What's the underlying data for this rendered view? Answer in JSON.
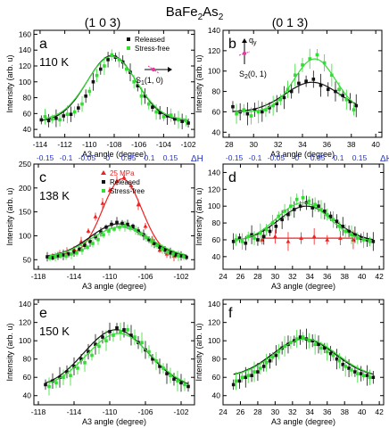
{
  "figure": {
    "formula": [
      "BaFe",
      "2",
      "As",
      "2"
    ],
    "col_headers": [
      "(1 0 3)",
      "(0 1 3)"
    ],
    "colors": {
      "released": "#111111",
      "stress_free": "#33dd33",
      "mpa25": "#ee2222",
      "delta_h": "#2233cc"
    }
  },
  "chart_data": [
    {
      "type": "scatter",
      "panel": "a",
      "temperature": "110 K",
      "xlabel": "A3 angle (degree)",
      "ylabel": "Intensity (arb. u)",
      "xlim": [
        -114.5,
        -101.5
      ],
      "ylim": [
        30,
        165
      ],
      "xticks": [
        -114,
        -112,
        -110,
        -108,
        -106,
        -104,
        -102
      ],
      "yticks": [
        40,
        60,
        80,
        100,
        120,
        140,
        160
      ],
      "legend": [
        "Released",
        "Stress-free"
      ],
      "inset": {
        "label": "S",
        "sub": "1",
        "coord": "(1, 0)"
      },
      "series": [
        {
          "name": "Released",
          "x": [
            -113.9,
            -113.3,
            -112.7,
            -112.1,
            -111.5,
            -110.9,
            -110.3,
            -109.7,
            -109.1,
            -108.5,
            -107.9,
            -107.3,
            -106.7,
            -106.1,
            -105.5,
            -104.9,
            -104.3,
            -103.7,
            -103.1,
            -102.5,
            -102.0
          ],
          "y": [
            52,
            51,
            54,
            57,
            59,
            67,
            82,
            100,
            116,
            128,
            131,
            125,
            112,
            95,
            82,
            68,
            61,
            57,
            53,
            50,
            48
          ],
          "fit": {
            "a": 83,
            "c": -108.2,
            "w": 2.0,
            "b": 50
          }
        },
        {
          "name": "Stress-free",
          "x": [
            -113.6,
            -113.0,
            -112.4,
            -111.8,
            -111.2,
            -110.6,
            -110.0,
            -109.4,
            -108.8,
            -108.2,
            -107.6,
            -107.0,
            -106.4,
            -105.8,
            -105.2,
            -104.6,
            -104.0,
            -103.4,
            -102.8,
            -102.2
          ],
          "y": [
            56,
            53,
            52,
            59,
            62,
            72,
            88,
            108,
            120,
            134,
            128,
            116,
            100,
            82,
            72,
            62,
            56,
            58,
            52,
            51
          ],
          "fit": {
            "a": 80,
            "c": -108.2,
            "w": 2.0,
            "b": 52
          }
        }
      ]
    },
    {
      "type": "scatter",
      "panel": "b",
      "xlabel": "A3 angle (degree)",
      "ylabel": "Intensity (arb. u)",
      "xlim": [
        27.5,
        40.5
      ],
      "ylim": [
        35,
        140
      ],
      "xticks": [
        28,
        30,
        32,
        34,
        36,
        38,
        40
      ],
      "yticks": [
        40,
        60,
        80,
        100,
        120,
        140
      ],
      "inset": {
        "label": "S",
        "sub": "2",
        "coord": "(0, 1)",
        "q": "q",
        "q_sub": "y"
      },
      "series": [
        {
          "name": "Released",
          "x": [
            28.3,
            28.9,
            29.5,
            30.1,
            30.7,
            31.3,
            31.9,
            32.5,
            33.1,
            33.7,
            34.3,
            34.9,
            35.5,
            36.1,
            36.7,
            37.3,
            37.9,
            38.4
          ],
          "y": [
            65,
            60,
            58,
            62,
            60,
            64,
            68,
            74,
            80,
            88,
            90,
            92,
            86,
            82,
            80,
            76,
            70,
            66
          ],
          "fit": {
            "a": 29,
            "c": 34.8,
            "w": 2.2,
            "b": 60
          }
        },
        {
          "name": "Stress-free",
          "x": [
            28.6,
            29.2,
            29.8,
            30.4,
            31.0,
            31.6,
            32.2,
            32.8,
            33.4,
            34.0,
            34.6,
            35.2,
            35.8,
            36.4,
            37.0,
            37.6,
            38.2
          ],
          "y": [
            58,
            62,
            56,
            60,
            62,
            66,
            72,
            82,
            96,
            106,
            112,
            116,
            108,
            96,
            82,
            72,
            62
          ],
          "fit": {
            "a": 52,
            "c": 35.0,
            "w": 1.7,
            "b": 60
          }
        }
      ]
    },
    {
      "type": "scatter",
      "panel": "c",
      "temperature": "138 K",
      "xlabel": "A3 angle (degree)",
      "ylabel": "Intensity (arb. u)",
      "top_axis_label": "ΔH",
      "top_ticks": [
        "-0.15",
        "-0.1",
        "-0.05",
        "0",
        "0.05",
        "0.1",
        "0.15"
      ],
      "xlim": [
        -118.5,
        -100.5
      ],
      "ylim": [
        30,
        250
      ],
      "xticks": [
        -118,
        -114,
        -110,
        -106,
        -102
      ],
      "yticks": [
        50,
        100,
        150,
        200,
        250
      ],
      "legend": [
        "25 MPa",
        "Released",
        "Stress-free"
      ],
      "series": [
        {
          "name": "25 MPa",
          "x": [
            -116.4,
            -115.6,
            -114.8,
            -114.0,
            -113.2,
            -112.4,
            -111.6,
            -110.8,
            -110.0,
            -109.2,
            -108.4,
            -107.6,
            -106.8,
            -106.0,
            -105.2,
            -104.4,
            -103.6,
            -102.8
          ],
          "y": [
            58,
            62,
            65,
            72,
            88,
            110,
            140,
            168,
            195,
            215,
            222,
            205,
            165,
            120,
            90,
            70,
            62,
            58
          ],
          "fit": {
            "a": 162,
            "c": -108.6,
            "w": 2.2,
            "b": 57
          }
        },
        {
          "name": "Released",
          "x": [
            -117.0,
            -116.4,
            -115.8,
            -115.2,
            -114.6,
            -114.0,
            -113.4,
            -112.8,
            -112.2,
            -111.6,
            -111.0,
            -110.4,
            -109.8,
            -109.2,
            -108.6,
            -108.0,
            -107.4,
            -106.8,
            -106.2,
            -105.6,
            -105.0,
            -104.4,
            -103.8,
            -103.2,
            -102.6,
            -102.0,
            -101.4
          ],
          "y": [
            56,
            54,
            58,
            60,
            62,
            66,
            72,
            80,
            88,
            98,
            108,
            118,
            124,
            128,
            126,
            124,
            120,
            110,
            102,
            92,
            84,
            76,
            70,
            64,
            60,
            58,
            55
          ],
          "fit": {
            "a": 70,
            "c": -109.0,
            "w": 3.2,
            "b": 55
          }
        },
        {
          "name": "Stress-free",
          "x": [
            -116.7,
            -116.1,
            -115.5,
            -114.9,
            -114.3,
            -113.7,
            -113.1,
            -112.5,
            -111.9,
            -111.3,
            -110.7,
            -110.1,
            -109.5,
            -108.9,
            -108.3,
            -107.7,
            -107.1,
            -106.5,
            -105.9,
            -105.3,
            -104.7,
            -104.1,
            -103.5,
            -102.9,
            -102.3,
            -101.7
          ],
          "y": [
            54,
            56,
            58,
            58,
            62,
            64,
            70,
            76,
            84,
            92,
            102,
            110,
            114,
            118,
            120,
            116,
            112,
            104,
            96,
            88,
            80,
            72,
            66,
            62,
            58,
            56
          ],
          "fit": {
            "a": 64,
            "c": -108.8,
            "w": 3.4,
            "b": 54
          }
        }
      ]
    },
    {
      "type": "scatter",
      "panel": "d",
      "xlabel": "A3 angle (degree)",
      "ylabel": "Intensity (arb. u)",
      "top_axis_label": "ΔH",
      "top_ticks": [
        "-0.15",
        "-0.1",
        "-0.05",
        "0",
        "0.05",
        "0.1",
        "0.15"
      ],
      "xlim": [
        24,
        42.5
      ],
      "ylim": [
        25,
        150
      ],
      "xticks": [
        24,
        26,
        28,
        30,
        32,
        34,
        36,
        38,
        40,
        42
      ],
      "yticks": [
        40,
        60,
        80,
        100,
        120,
        140
      ],
      "series": [
        {
          "name": "25 MPa",
          "x": [
            28.5,
            30.0,
            31.5,
            33.0,
            34.5,
            36.0,
            37.5,
            39.0
          ],
          "y": [
            60,
            64,
            58,
            62,
            64,
            60,
            62,
            60
          ],
          "fit": {
            "a": 0,
            "c": 33.5,
            "w": 3,
            "b": 62
          }
        },
        {
          "name": "Released",
          "x": [
            25.2,
            25.9,
            26.6,
            27.3,
            28.0,
            28.7,
            29.4,
            30.1,
            30.8,
            31.5,
            32.2,
            32.9,
            33.6,
            34.3,
            35.0,
            35.7,
            36.4,
            37.1,
            37.8,
            38.5,
            39.2,
            39.9,
            40.6,
            41.3
          ],
          "y": [
            58,
            62,
            56,
            66,
            60,
            64,
            70,
            76,
            84,
            90,
            96,
            100,
            104,
            98,
            100,
            94,
            88,
            82,
            76,
            70,
            66,
            62,
            60,
            58
          ],
          "fit": {
            "a": 42,
            "c": 33.6,
            "w": 3.2,
            "b": 58
          }
        },
        {
          "name": "Stress-free",
          "x": [
            25.5,
            26.2,
            26.9,
            27.6,
            28.3,
            29.0,
            29.7,
            30.4,
            31.1,
            31.8,
            32.5,
            33.2,
            33.9,
            34.6,
            35.3,
            36.0,
            36.7,
            37.4,
            38.1,
            38.8,
            39.5,
            40.2,
            40.9
          ],
          "y": [
            60,
            58,
            64,
            62,
            68,
            72,
            80,
            88,
            94,
            100,
            108,
            110,
            106,
            102,
            96,
            90,
            84,
            76,
            70,
            66,
            62,
            60,
            58
          ],
          "fit": {
            "a": 46,
            "c": 33.2,
            "w": 3.0,
            "b": 58
          }
        }
      ]
    },
    {
      "type": "scatter",
      "panel": "e",
      "temperature": "150 K",
      "xlabel": "A3 angle (degree)",
      "ylabel": "Intensity (arb. u)",
      "xlim": [
        -118.5,
        -100.5
      ],
      "ylim": [
        30,
        145
      ],
      "xticks": [
        -118,
        -114,
        -110,
        -106,
        -102
      ],
      "yticks": [
        40,
        60,
        80,
        100,
        120,
        140
      ],
      "series": [
        {
          "name": "Released",
          "x": [
            -117.2,
            -116.4,
            -115.6,
            -114.8,
            -114.0,
            -113.2,
            -112.4,
            -111.6,
            -110.8,
            -110.0,
            -109.2,
            -108.4,
            -107.6,
            -106.8,
            -106.0,
            -105.2,
            -104.4,
            -103.6,
            -102.8,
            -102.0,
            -101.2
          ],
          "y": [
            52,
            56,
            60,
            66,
            72,
            80,
            88,
            96,
            104,
            110,
            114,
            112,
            106,
            98,
            90,
            80,
            72,
            64,
            58,
            54,
            50
          ],
          "fit": {
            "a": 64,
            "c": -109.3,
            "w": 3.6,
            "b": 48
          }
        },
        {
          "name": "Stress-free",
          "x": [
            -116.8,
            -116.0,
            -115.2,
            -114.4,
            -113.6,
            -112.8,
            -112.0,
            -111.2,
            -110.4,
            -109.6,
            -108.8,
            -108.0,
            -107.2,
            -106.4,
            -105.6,
            -104.8,
            -104.0,
            -103.2,
            -102.4,
            -101.6
          ],
          "y": [
            50,
            54,
            60,
            62,
            70,
            76,
            84,
            94,
            100,
            106,
            110,
            112,
            104,
            98,
            88,
            78,
            70,
            62,
            56,
            52
          ],
          "fit": {
            "a": 60,
            "c": -109.0,
            "w": 3.6,
            "b": 48
          }
        }
      ]
    },
    {
      "type": "scatter",
      "panel": "f",
      "xlabel": "A3 angle (degree)",
      "ylabel": "Intensity (arb. u)",
      "xlim": [
        24,
        42.5
      ],
      "ylim": [
        30,
        145
      ],
      "xticks": [
        24,
        26,
        28,
        30,
        32,
        34,
        36,
        38,
        40,
        42
      ],
      "yticks": [
        40,
        60,
        80,
        100,
        120,
        140
      ],
      "series": [
        {
          "name": "Released",
          "x": [
            25.2,
            25.9,
            26.6,
            27.3,
            28.0,
            28.7,
            29.4,
            30.1,
            30.8,
            31.5,
            32.2,
            32.9,
            33.6,
            34.3,
            35.0,
            35.7,
            36.4,
            37.1,
            37.8,
            38.5,
            39.2,
            39.9,
            40.6,
            41.3
          ],
          "y": [
            52,
            56,
            60,
            62,
            66,
            72,
            78,
            84,
            92,
            96,
            100,
            104,
            102,
            100,
            96,
            92,
            86,
            80,
            74,
            70,
            66,
            64,
            62,
            60
          ],
          "fit": {
            "a": 42,
            "c": 33.3,
            "w": 3.6,
            "b": 60
          }
        },
        {
          "name": "Stress-free",
          "x": [
            25.5,
            26.2,
            26.9,
            27.6,
            28.3,
            29.0,
            29.7,
            30.4,
            31.1,
            31.8,
            32.5,
            33.2,
            33.9,
            34.6,
            35.3,
            36.0,
            36.7,
            37.4,
            38.1,
            38.8,
            39.5,
            40.2,
            40.9
          ],
          "y": [
            56,
            60,
            62,
            66,
            70,
            76,
            82,
            88,
            94,
            98,
            102,
            104,
            100,
            96,
            92,
            88,
            84,
            78,
            72,
            68,
            64,
            62,
            60
          ],
          "fit": {
            "a": 42,
            "c": 33.5,
            "w": 3.6,
            "b": 60
          }
        }
      ]
    }
  ]
}
